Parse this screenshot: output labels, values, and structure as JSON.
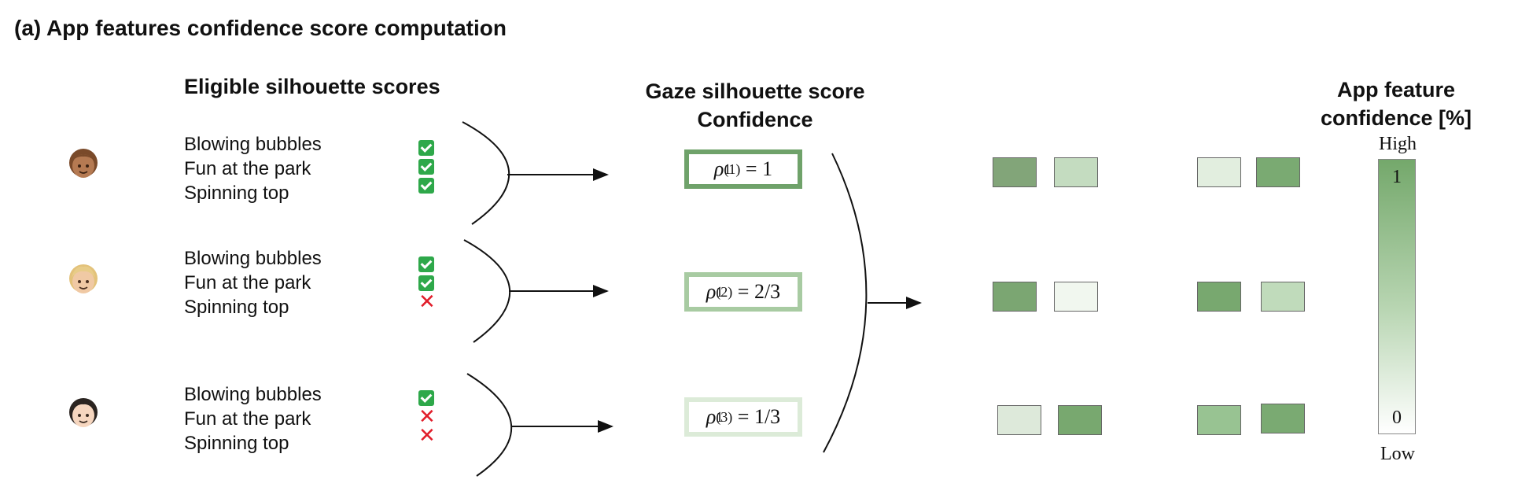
{
  "title": "(a) App features confidence score computation",
  "headers": {
    "eligible": "Eligible silhouette scores",
    "gaze_line1": "Gaze silhouette score",
    "gaze_line2": "Confidence",
    "app_line1": "App feature",
    "app_line2": "confidence [%]"
  },
  "users": [
    {
      "avatar_icon": "child-avatar-medium-skin-icon",
      "tasks": [
        "Blowing bubbles",
        "Fun at the park",
        "Spinning top"
      ],
      "eligible": [
        true,
        true,
        true
      ],
      "confidence": {
        "symbol": "ρ",
        "sub": "1",
        "sup": "(1)",
        "value": "= 1",
        "border_color": "#6fa26a"
      }
    },
    {
      "avatar_icon": "child-avatar-blond-icon",
      "tasks": [
        "Blowing bubbles",
        "Fun at the park",
        "Spinning top"
      ],
      "eligible": [
        true,
        true,
        false
      ],
      "confidence": {
        "symbol": "ρ",
        "sub": "1",
        "sup": "(2)",
        "value": "= 2/3",
        "border_color": "#a8cba2"
      }
    },
    {
      "avatar_icon": "child-avatar-light-skin-icon",
      "tasks": [
        "Blowing bubbles",
        "Fun at the park",
        "Spinning top"
      ],
      "eligible": [
        true,
        false,
        false
      ],
      "confidence": {
        "symbol": "ρ",
        "sub": "1",
        "sup": "(3)",
        "value": "= 1/3",
        "border_color": "#dcebd8"
      }
    }
  ],
  "feature_squares": [
    [
      "#82a579",
      "#c4dcc0",
      "#e2eedf",
      "#7aaa72"
    ],
    [
      "#7ba672",
      "#f1f7ef",
      "#78a86f",
      "#c0dbbb"
    ],
    [
      "#dde9da",
      "#78a86f",
      "#98c392",
      "#7aaa72"
    ]
  ],
  "scale": {
    "high_label": "High",
    "low_label": "Low",
    "top_value": "1",
    "bottom_value": "0"
  },
  "colors": {
    "check": "#2ea84a",
    "cross": "#e11d2a"
  }
}
